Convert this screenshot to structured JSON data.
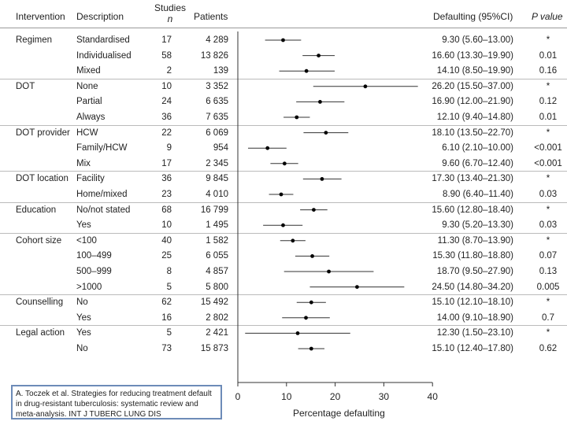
{
  "header": {
    "intervention": "Intervention",
    "description": "Description",
    "studies_line1": "Studies",
    "studies_line2": "n",
    "patients": "Patients",
    "defaulting": "Defaulting (95%CI)",
    "pvalue": "P value"
  },
  "chart_data": {
    "type": "forest",
    "title": "",
    "xlabel": "Percentage defaulting",
    "xlim": [
      0,
      40
    ],
    "xticks": [
      "0",
      "10",
      "20",
      "30",
      "40"
    ],
    "rows": [
      {
        "group": "Regimen",
        "description": "Standardised",
        "studies": "17",
        "patients": "4 289",
        "estimate": 9.3,
        "low": 5.6,
        "high": 13.0,
        "ci_text": "9.30 (5.60–13.00)",
        "p": "*"
      },
      {
        "group": "",
        "description": "Individualised",
        "studies": "58",
        "patients": "13 826",
        "estimate": 16.6,
        "low": 13.3,
        "high": 19.9,
        "ci_text": "16.60 (13.30–19.90)",
        "p": "0.01"
      },
      {
        "group": "",
        "description": "Mixed",
        "studies": "2",
        "patients": "139",
        "estimate": 14.1,
        "low": 8.5,
        "high": 19.9,
        "ci_text": "14.10 (8.50–19.90)",
        "p": "0.16"
      },
      {
        "group": "DOT",
        "description": "None",
        "studies": "10",
        "patients": "3 352",
        "estimate": 26.2,
        "low": 15.5,
        "high": 37.0,
        "ci_text": "26.20 (15.50–37.00)",
        "p": "*"
      },
      {
        "group": "",
        "description": "Partial",
        "studies": "24",
        "patients": "6 635",
        "estimate": 16.9,
        "low": 12.0,
        "high": 21.9,
        "ci_text": "16.90 (12.00–21.90)",
        "p": "0.12"
      },
      {
        "group": "",
        "description": "Always",
        "studies": "36",
        "patients": "7 635",
        "estimate": 12.1,
        "low": 9.4,
        "high": 14.8,
        "ci_text": "12.10 (9.40–14.80)",
        "p": "0.01"
      },
      {
        "group": "DOT provider",
        "description": "HCW",
        "studies": "22",
        "patients": "6 069",
        "estimate": 18.1,
        "low": 13.5,
        "high": 22.7,
        "ci_text": "18.10 (13.50–22.70)",
        "p": "*"
      },
      {
        "group": "",
        "description": "Family/HCW",
        "studies": "9",
        "patients": "954",
        "estimate": 6.1,
        "low": 2.1,
        "high": 10.0,
        "ci_text": "6.10 (2.10–10.00)",
        "p": "<0.001"
      },
      {
        "group": "",
        "description": "Mix",
        "studies": "17",
        "patients": "2 345",
        "estimate": 9.6,
        "low": 6.7,
        "high": 12.4,
        "ci_text": "9.60 (6.70–12.40)",
        "p": "<0.001"
      },
      {
        "group": "DOT location",
        "description": "Facility",
        "studies": "36",
        "patients": "9 845",
        "estimate": 17.3,
        "low": 13.4,
        "high": 21.3,
        "ci_text": "17.30 (13.40–21.30)",
        "p": "*"
      },
      {
        "group": "",
        "description": "Home/mixed",
        "studies": "23",
        "patients": "4 010",
        "estimate": 8.9,
        "low": 6.4,
        "high": 11.4,
        "ci_text": "8.90 (6.40–11.40)",
        "p": "0.03"
      },
      {
        "group": "Education",
        "description": "No/not stated",
        "studies": "68",
        "patients": "16 799",
        "estimate": 15.6,
        "low": 12.8,
        "high": 18.4,
        "ci_text": "15.60 (12.80–18.40)",
        "p": "*"
      },
      {
        "group": "",
        "description": "Yes",
        "studies": "10",
        "patients": "1 495",
        "estimate": 9.3,
        "low": 5.2,
        "high": 13.3,
        "ci_text": "9.30 (5.20–13.30)",
        "p": "0.03"
      },
      {
        "group": "Cohort size",
        "description": "<100",
        "studies": "40",
        "patients": "1 582",
        "estimate": 11.3,
        "low": 8.7,
        "high": 13.9,
        "ci_text": "11.30 (8.70–13.90)",
        "p": "*"
      },
      {
        "group": "",
        "description": "100–499",
        "studies": "25",
        "patients": "6 055",
        "estimate": 15.3,
        "low": 11.8,
        "high": 18.8,
        "ci_text": "15.30 (11.80–18.80)",
        "p": "0.07"
      },
      {
        "group": "",
        "description": "500–999",
        "studies": "8",
        "patients": "4 857",
        "estimate": 18.7,
        "low": 9.5,
        "high": 27.9,
        "ci_text": "18.70 (9.50–27.90)",
        "p": "0.13"
      },
      {
        "group": "",
        "description": ">1000",
        "studies": "5",
        "patients": "5 800",
        "estimate": 24.5,
        "low": 14.8,
        "high": 34.2,
        "ci_text": "24.50 (14.80–34.20)",
        "p": "0.005"
      },
      {
        "group": "Counselling",
        "description": "No",
        "studies": "62",
        "patients": "15 492",
        "estimate": 15.1,
        "low": 12.1,
        "high": 18.1,
        "ci_text": "15.10 (12.10–18.10)",
        "p": "*"
      },
      {
        "group": "",
        "description": "Yes",
        "studies": "16",
        "patients": "2 802",
        "estimate": 14.0,
        "low": 9.1,
        "high": 18.9,
        "ci_text": "14.00 (9.10–18.90)",
        "p": "0.7"
      },
      {
        "group": "Legal action",
        "description": "Yes",
        "studies": "5",
        "patients": "2 421",
        "estimate": 12.3,
        "low": 1.5,
        "high": 23.1,
        "ci_text": "12.30 (1.50–23.10)",
        "p": "*"
      },
      {
        "group": "",
        "description": "No",
        "studies": "73",
        "patients": "15 873",
        "estimate": 15.1,
        "low": 12.4,
        "high": 17.8,
        "ci_text": "15.10 (12.40–17.80)",
        "p": "0.62"
      }
    ]
  },
  "citation": {
    "text": "A. Toczek et al. Strategies for reducing treatment default in drug-resistant tuberculosis: systematic review and meta-analysis. INT J TUBERC LUNG DIS"
  }
}
